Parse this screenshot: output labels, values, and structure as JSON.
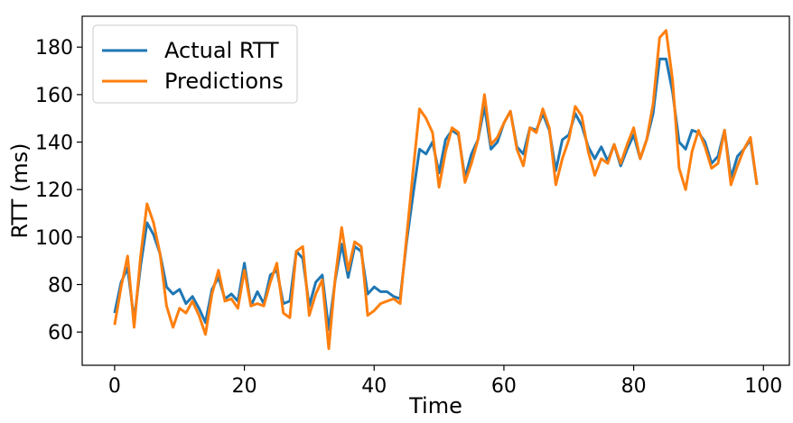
{
  "chart_data": {
    "type": "line",
    "title": "",
    "xlabel": "Time",
    "ylabel": "RTT (ms)",
    "xlim": [
      -5,
      104
    ],
    "ylim": [
      46,
      193
    ],
    "xticks": [
      0,
      20,
      40,
      60,
      80,
      100
    ],
    "yticks": [
      60,
      80,
      100,
      120,
      140,
      160,
      180
    ],
    "grid": false,
    "legend_position": "top-left",
    "x": [
      0,
      1,
      2,
      3,
      4,
      5,
      6,
      7,
      8,
      9,
      10,
      11,
      12,
      13,
      14,
      15,
      16,
      17,
      18,
      19,
      20,
      21,
      22,
      23,
      24,
      25,
      26,
      27,
      28,
      29,
      30,
      31,
      32,
      33,
      34,
      35,
      36,
      37,
      38,
      39,
      40,
      41,
      42,
      43,
      44,
      45,
      46,
      47,
      48,
      49,
      50,
      51,
      52,
      53,
      54,
      55,
      56,
      57,
      58,
      59,
      60,
      61,
      62,
      63,
      64,
      65,
      66,
      67,
      68,
      69,
      70,
      71,
      72,
      73,
      74,
      75,
      76,
      77,
      78,
      79,
      80,
      81,
      82,
      83,
      84,
      85,
      86,
      87,
      88,
      89,
      90,
      91,
      92,
      93,
      94,
      95,
      96,
      97,
      98,
      99
    ],
    "series": [
      {
        "name": "Actual RTT",
        "color": "#1f77b4",
        "values": [
          68,
          81,
          87,
          65,
          88,
          106,
          101,
          93,
          79,
          76,
          78,
          72,
          75,
          70,
          64,
          78,
          83,
          74,
          76,
          73,
          89,
          71,
          77,
          72,
          84,
          86,
          72,
          73,
          94,
          91,
          71,
          81,
          84,
          61,
          82,
          97,
          83,
          96,
          94,
          76,
          79,
          77,
          77,
          75,
          74,
          98,
          118,
          137,
          135,
          140,
          127,
          141,
          145,
          143,
          125,
          135,
          141,
          155,
          137,
          140,
          148,
          153,
          138,
          135,
          146,
          145,
          152,
          145,
          128,
          141,
          143,
          152,
          147,
          138,
          133,
          138,
          132,
          139,
          130,
          137,
          143,
          133,
          141,
          152,
          175,
          175,
          161,
          140,
          137,
          145,
          144,
          140,
          131,
          134,
          145,
          125,
          134,
          137,
          141,
          122
        ]
      },
      {
        "name": "Predictions",
        "color": "#ff7f0e",
        "values": [
          63,
          79,
          92,
          62,
          92,
          114,
          106,
          93,
          71,
          62,
          70,
          68,
          73,
          67,
          59,
          76,
          86,
          73,
          74,
          70,
          86,
          71,
          72,
          71,
          81,
          89,
          68,
          66,
          94,
          96,
          67,
          76,
          82,
          53,
          83,
          104,
          86,
          98,
          96,
          67,
          69,
          72,
          73,
          74,
          72,
          100,
          128,
          154,
          150,
          144,
          121,
          136,
          146,
          144,
          123,
          131,
          141,
          160,
          139,
          142,
          148,
          153,
          137,
          130,
          146,
          144,
          154,
          146,
          122,
          133,
          141,
          155,
          151,
          136,
          126,
          133,
          131,
          139,
          131,
          139,
          146,
          133,
          141,
          156,
          184,
          187,
          166,
          129,
          120,
          136,
          145,
          138,
          129,
          131,
          145,
          122,
          130,
          137,
          142,
          122
        ]
      }
    ]
  }
}
